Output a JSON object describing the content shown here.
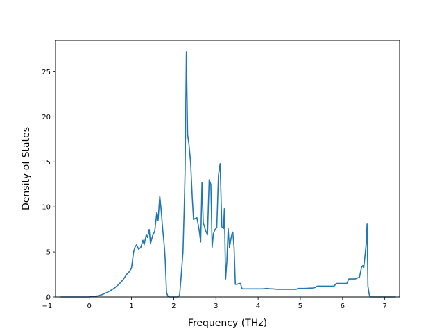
{
  "chart_data": {
    "type": "line",
    "title": "",
    "xlabel": "Frequency (THz)",
    "ylabel": "Density of States",
    "xlim": [
      -0.8,
      7.35
    ],
    "ylim": [
      0,
      28.5
    ],
    "xticks": [
      -1,
      0,
      1,
      2,
      3,
      4,
      5,
      6,
      7
    ],
    "yticks": [
      0,
      5,
      10,
      15,
      20,
      25
    ],
    "xtick_labels": [
      "−1",
      "0",
      "1",
      "2",
      "3",
      "4",
      "5",
      "6",
      "7"
    ],
    "ytick_labels": [
      "0",
      "5",
      "10",
      "15",
      "20",
      "25"
    ],
    "grid": false,
    "legend": null,
    "series": [
      {
        "color": "#1f77b4",
        "x": [
          -0.68,
          0.0,
          0.1,
          0.2,
          0.3,
          0.4,
          0.5,
          0.6,
          0.7,
          0.8,
          0.9,
          0.95,
          1.0,
          1.05,
          1.08,
          1.12,
          1.17,
          1.22,
          1.27,
          1.3,
          1.35,
          1.38,
          1.42,
          1.45,
          1.5,
          1.55,
          1.6,
          1.63,
          1.67,
          1.7,
          1.74,
          1.78,
          1.8,
          1.83,
          1.86,
          1.9,
          1.95,
          2.0,
          2.05,
          2.1,
          2.14,
          2.18,
          2.22,
          2.25,
          2.27,
          2.3,
          2.33,
          2.36,
          2.4,
          2.44,
          2.47,
          2.5,
          2.55,
          2.6,
          2.64,
          2.67,
          2.7,
          2.73,
          2.76,
          2.8,
          2.84,
          2.88,
          2.91,
          2.94,
          2.98,
          3.02,
          3.06,
          3.1,
          3.14,
          3.18,
          3.2,
          3.23,
          3.26,
          3.29,
          3.32,
          3.35,
          3.38,
          3.4,
          3.43,
          3.46,
          3.5,
          3.55,
          3.58,
          3.62,
          3.66,
          3.7,
          3.75,
          3.8,
          3.85,
          3.9,
          4.0,
          4.1,
          4.2,
          4.3,
          4.35,
          4.45,
          4.6,
          4.8,
          4.9,
          4.95,
          5.1,
          5.3,
          5.35,
          5.4,
          5.6,
          5.75,
          5.8,
          5.85,
          6.0,
          6.1,
          6.15,
          6.2,
          6.3,
          6.35,
          6.4,
          6.45,
          6.48,
          6.5,
          6.53,
          6.56,
          6.58,
          6.6,
          6.63,
          6.65,
          6.7,
          7.0,
          7.26
        ],
        "y": [
          0.0,
          0.0,
          0.05,
          0.12,
          0.25,
          0.45,
          0.7,
          1.0,
          1.4,
          1.9,
          2.6,
          2.8,
          3.2,
          5.0,
          5.5,
          5.8,
          5.3,
          5.5,
          6.3,
          5.8,
          6.9,
          6.6,
          7.5,
          5.9,
          6.8,
          7.3,
          9.4,
          8.5,
          11.2,
          9.8,
          7.5,
          5.5,
          4.0,
          0.5,
          0.1,
          0.0,
          0.0,
          0.0,
          0.0,
          0.0,
          0.2,
          2.5,
          5.0,
          10.0,
          14.0,
          27.2,
          18.0,
          17.0,
          15.0,
          11.0,
          8.6,
          8.7,
          8.8,
          7.5,
          6.1,
          12.7,
          8.2,
          7.8,
          7.3,
          6.9,
          13.0,
          12.5,
          5.5,
          7.0,
          7.5,
          7.7,
          13.5,
          14.8,
          7.8,
          7.6,
          9.8,
          2.0,
          4.0,
          7.6,
          5.5,
          6.3,
          7.0,
          7.2,
          5.5,
          1.4,
          1.4,
          1.5,
          1.5,
          0.9,
          0.9,
          0.9,
          0.9,
          0.9,
          0.9,
          0.9,
          0.9,
          0.9,
          0.95,
          0.9,
          0.9,
          0.85,
          0.85,
          0.85,
          0.85,
          0.95,
          0.95,
          1.0,
          1.05,
          1.2,
          1.2,
          1.2,
          1.2,
          1.5,
          1.5,
          1.5,
          2.0,
          2.0,
          2.0,
          2.1,
          2.2,
          3.3,
          3.5,
          3.2,
          4.5,
          6.0,
          8.1,
          1.2,
          0.3,
          0.0,
          0.0,
          0.0,
          0.0
        ]
      }
    ]
  }
}
